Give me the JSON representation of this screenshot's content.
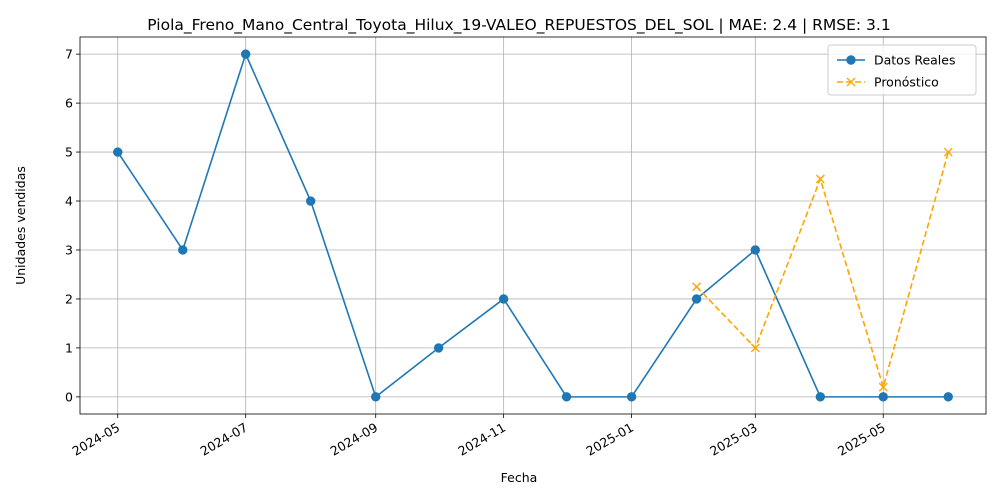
{
  "chart_data": {
    "type": "line",
    "title": "Piola_Freno_Mano_Central_Toyota_Hilux_19-VALEO_REPUESTOS_DEL_SOL | MAE: 2.4 | RMSE: 3.1",
    "xlabel": "Fecha",
    "ylabel": "Unidades vendidas",
    "xlim": [
      "2024-04-13",
      "2025-06-19"
    ],
    "ylim": [
      -0.35,
      7.35
    ],
    "x_ticks": [
      "2024-05",
      "2024-07",
      "2024-09",
      "2024-11",
      "2025-01",
      "2025-03",
      "2025-05"
    ],
    "y_ticks": [
      0,
      1,
      2,
      3,
      4,
      5,
      6,
      7
    ],
    "grid": true,
    "legend_position": "top-right",
    "series": [
      {
        "name": "Datos Reales",
        "color": "#1f77b4",
        "style": "solid",
        "marker": "circle",
        "x": [
          "2024-05-01",
          "2024-06-01",
          "2024-07-01",
          "2024-08-01",
          "2024-09-01",
          "2024-10-01",
          "2024-11-01",
          "2024-12-01",
          "2025-01-01",
          "2025-02-01",
          "2025-03-01",
          "2025-04-01",
          "2025-05-01",
          "2025-06-01"
        ],
        "y": [
          5,
          3,
          7,
          4,
          0,
          1,
          2,
          0,
          0,
          2,
          3,
          0,
          0,
          0
        ]
      },
      {
        "name": "Pronóstico",
        "color": "#ffa500",
        "style": "dashed",
        "marker": "x",
        "x": [
          "2025-02-01",
          "2025-03-01",
          "2025-04-01",
          "2025-05-01",
          "2025-06-01"
        ],
        "y": [
          2.25,
          1.0,
          4.45,
          0.2,
          5.0
        ]
      }
    ]
  }
}
